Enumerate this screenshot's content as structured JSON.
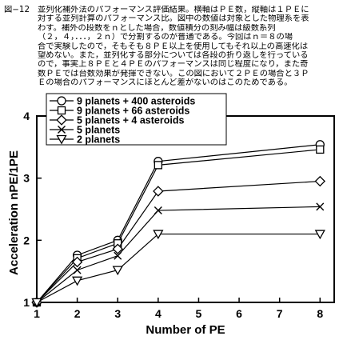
{
  "caption": {
    "label": "図−12",
    "lines": [
      "並列化補外法のパフォーマンス評価結果。横軸はＰＥ数，縦軸は１ＰＥに",
      "対する並列計算のパフォーマンス比。図中の数値は対象とした物理系を表",
      "わす。補外の段数をｎとした場合，数値積分の刻み幅は級数系列",
      "（２，４，．．．，２ｎ）で分割するのが普通である。今回はｎ＝８の場",
      "合で実験したので，そもそも８ＰＥ以上を使用してもそれ以上の高速化は",
      "望めない。また，並列化する部分については各段の折り返しを行っている",
      "ので，事実上８ＰＥと４ＰＥのパフォーマンスは同じ程度になり，また奇",
      "数ＰＥでは台数効果が発揮できない。この図において２ＰＥの場合と３Ｐ",
      "Ｅの場合のパフォーマンスにほとんど差がないのはこのためである。"
    ]
  },
  "chart_data": {
    "type": "line",
    "title": "",
    "xlabel": "Number of PE",
    "ylabel": "Acceleration nPE/1PE",
    "x_ticks": [
      1,
      2,
      3,
      4,
      5,
      6,
      7,
      8
    ],
    "y_ticks": [
      1,
      2,
      3,
      4
    ],
    "xlim": [
      1,
      8.35
    ],
    "ylim": [
      1,
      4
    ],
    "grid": false,
    "legend_position": "top-left",
    "x": [
      1,
      2,
      3,
      4,
      8
    ],
    "series": [
      {
        "name": "9 planets + 400 asteroids",
        "marker": "circle",
        "values": [
          1.0,
          1.76,
          2.0,
          3.27,
          3.54
        ]
      },
      {
        "name": "9 planets + 66 asteroids",
        "marker": "square",
        "values": [
          1.0,
          1.71,
          1.95,
          3.21,
          3.46
        ]
      },
      {
        "name": "5 planets + 4 asteroids",
        "marker": "diamond",
        "values": [
          1.0,
          1.65,
          1.86,
          2.79,
          2.95
        ]
      },
      {
        "name": "5 planets",
        "marker": "x",
        "values": [
          1.0,
          1.52,
          1.75,
          2.48,
          2.54
        ]
      },
      {
        "name": "2 planets",
        "marker": "triangle-down",
        "values": [
          1.0,
          1.35,
          1.52,
          2.1,
          2.1
        ]
      }
    ]
  }
}
